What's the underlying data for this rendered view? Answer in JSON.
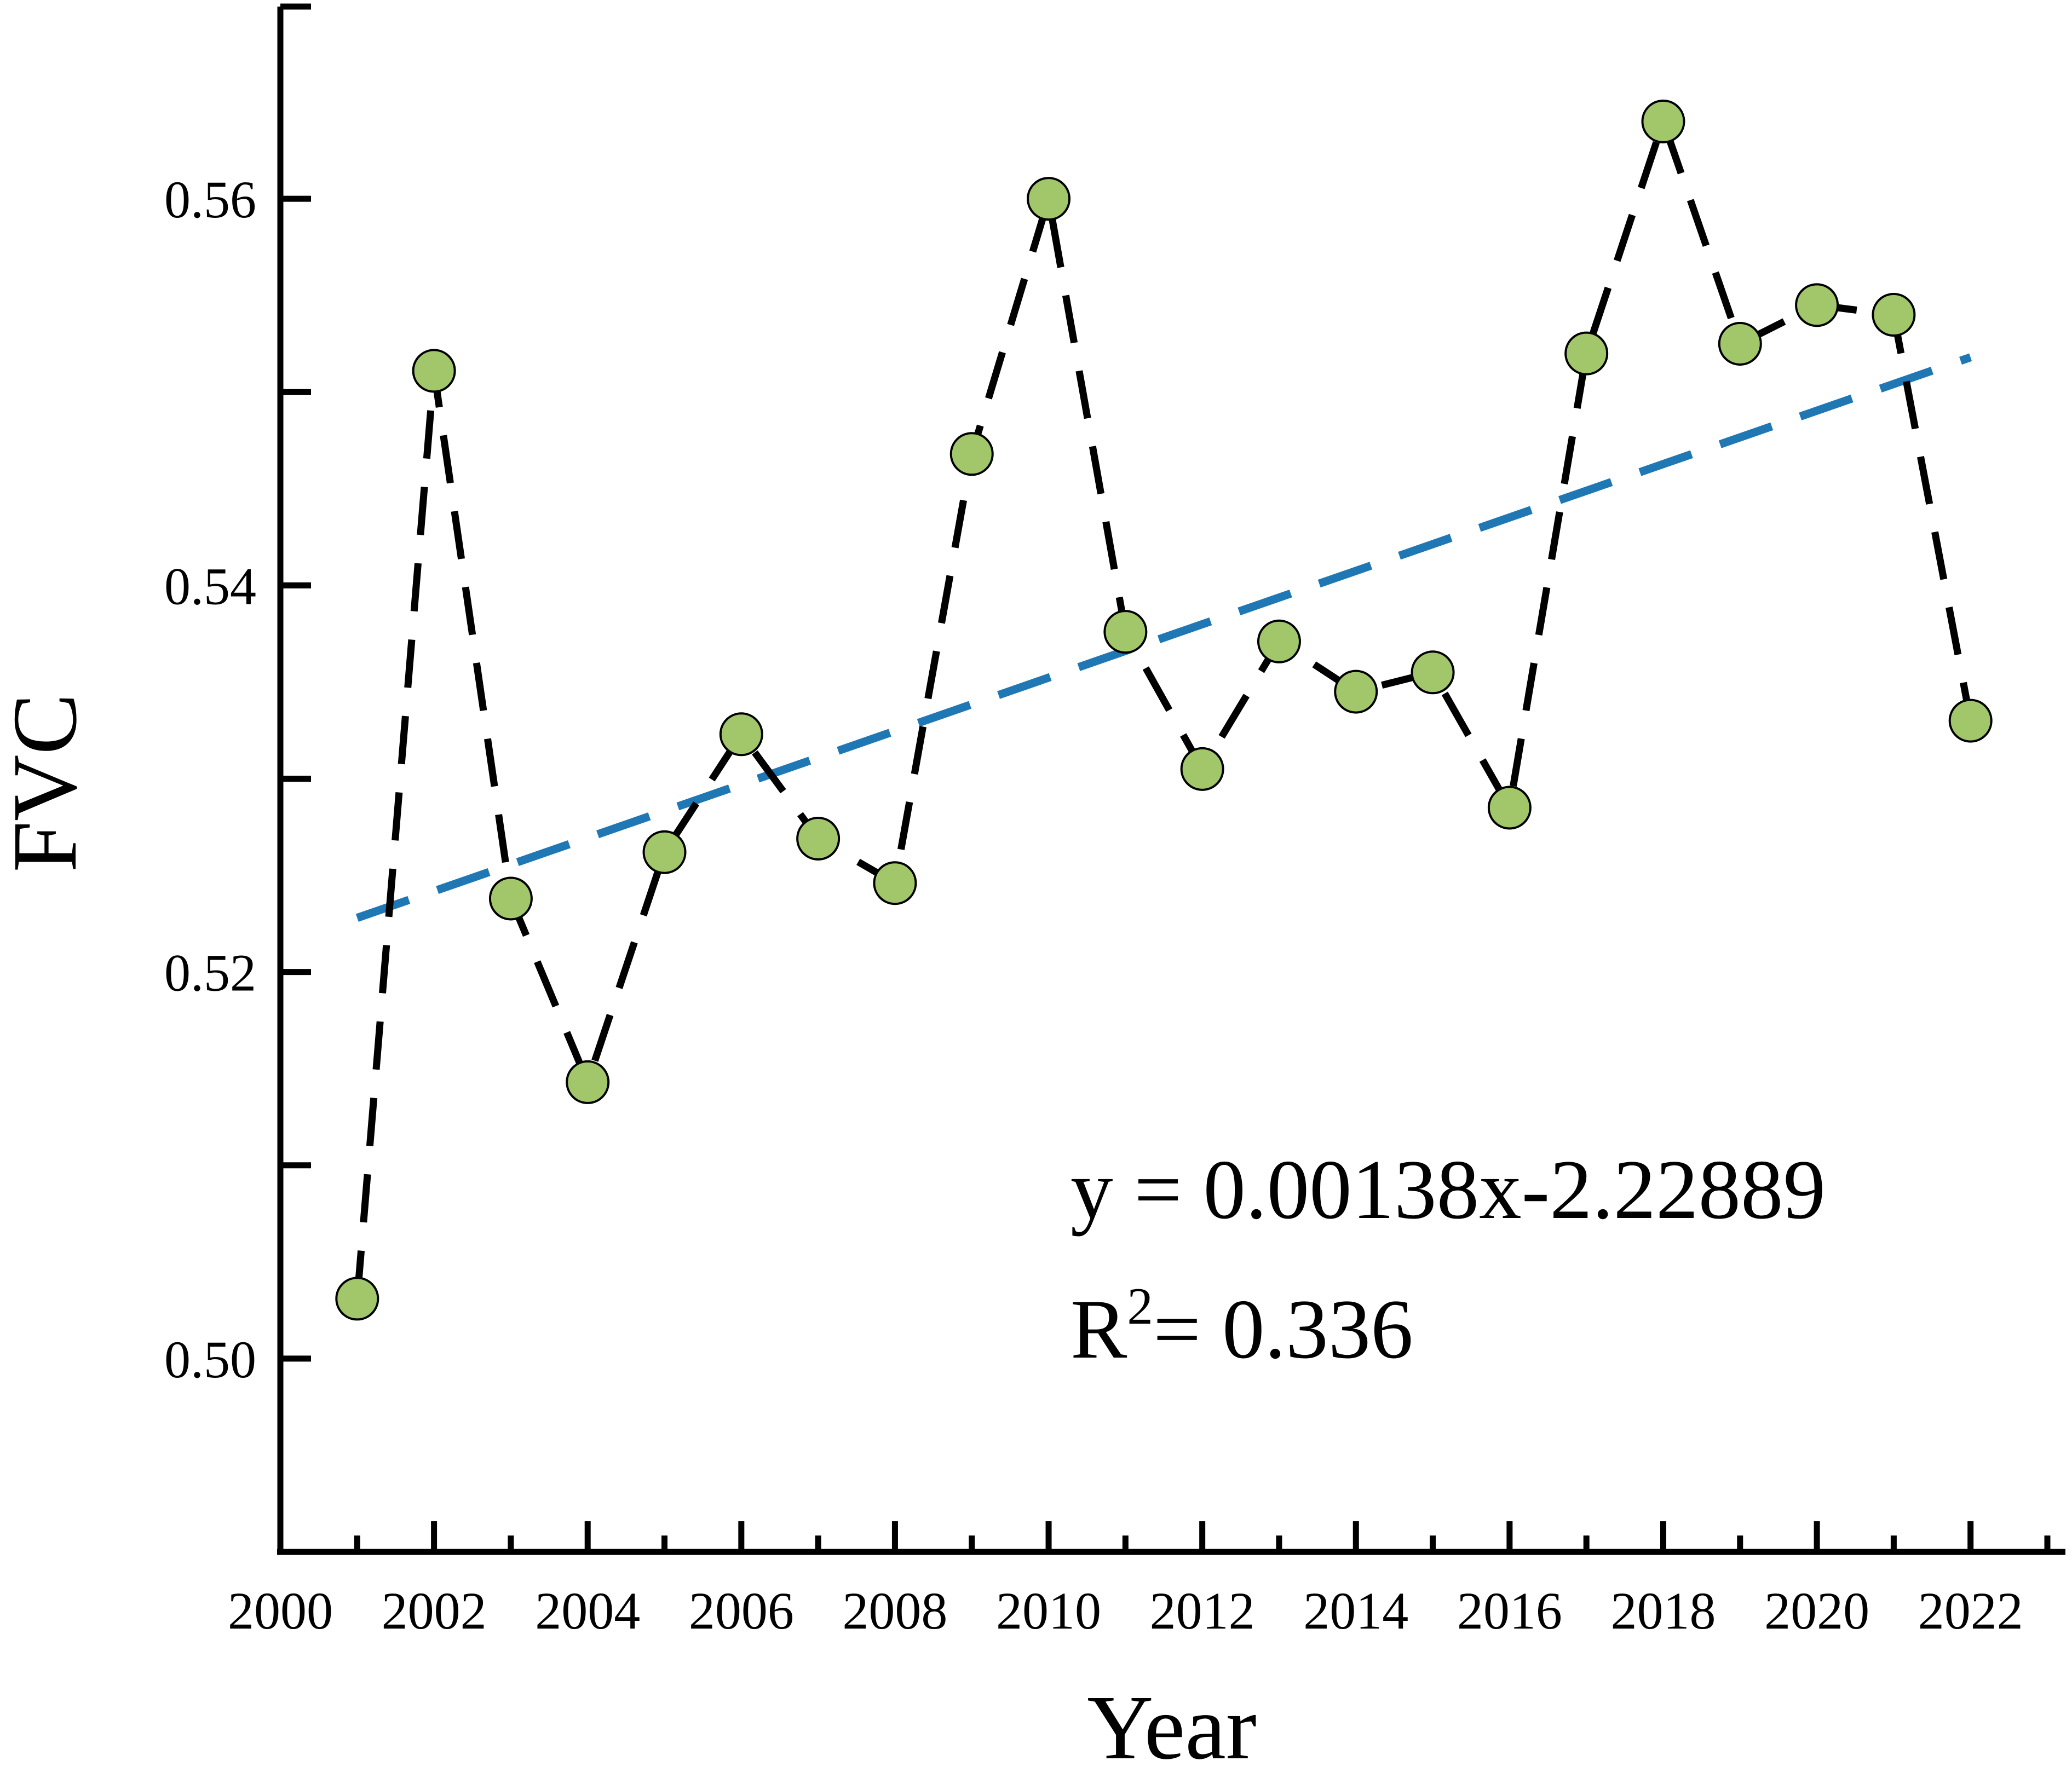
{
  "chart_data": {
    "type": "scatter",
    "xlabel": "Year",
    "ylabel": "FVC",
    "xlim": [
      2000,
      2023
    ],
    "ylim": [
      0.49,
      0.57
    ],
    "x_ticks": [
      2000,
      2002,
      2004,
      2006,
      2008,
      2010,
      2012,
      2014,
      2016,
      2018,
      2020,
      2022
    ],
    "y_ticks": [
      0.5,
      0.52,
      0.54,
      0.56
    ],
    "y_tick_labels": [
      "0.50",
      "0.52",
      "0.54",
      "0.56"
    ],
    "series": [
      {
        "style": "dashed-line-with-markers",
        "line_color": "#000000",
        "marker_color": "#a2c76a",
        "x": [
          2001,
          2002,
          2003,
          2004,
          2005,
          2006,
          2007,
          2008,
          2009,
          2010,
          2011,
          2012,
          2013,
          2014,
          2015,
          2016,
          2017,
          2018,
          2019,
          2020,
          2021,
          2022
        ],
        "y": [
          0.5031,
          0.5511,
          0.5238,
          0.5143,
          0.5262,
          0.5323,
          0.5269,
          0.5246,
          0.5468,
          0.56,
          0.5376,
          0.5305,
          0.5371,
          0.5345,
          0.5355,
          0.5285,
          0.552,
          0.564,
          0.5525,
          0.5545,
          0.554,
          0.533
        ]
      }
    ],
    "trendline": {
      "color": "#1f77b4",
      "style": "dashed",
      "x_start": 2001,
      "x_end": 2022,
      "y_start": 0.5228,
      "y_end": 0.5518
    },
    "annotation": {
      "equation": "y = 0.00138x-2.22889",
      "r2_prefix": "R",
      "r2_sup": "2",
      "r2_value": "= 0.336"
    }
  }
}
